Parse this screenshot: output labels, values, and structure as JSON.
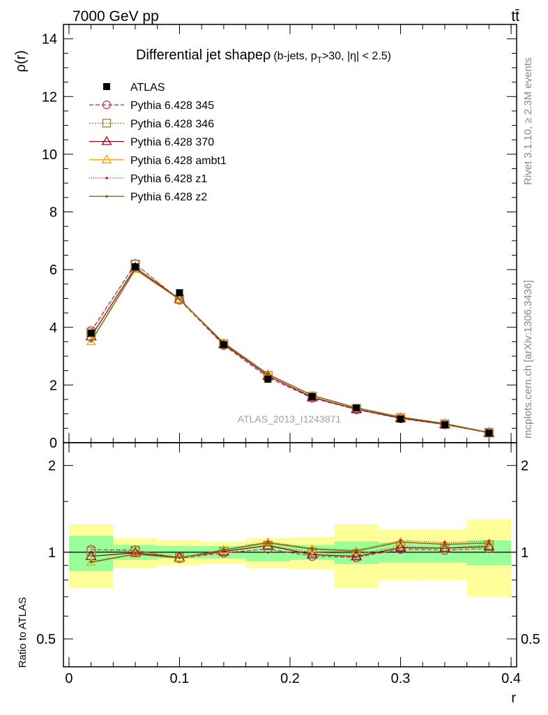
{
  "header": {
    "left": "7000 GeV pp",
    "right": "tt̄",
    "side_top": "Rivet 3.1.10, ≥ 2.3M events",
    "side_bottom": "mcplots.cern.ch [arXiv:1306.3436]"
  },
  "colors": {
    "ATLAS": "#000000",
    "Pythia 6.428 345": "#c0404f",
    "Pythia 6.428 346": "#a08040",
    "Pythia 6.428 370": "#8b0a1a",
    "Pythia 6.428 ambt1": "#f5a000",
    "Pythia 6.428 z1": "#cc1010",
    "Pythia 6.428 z2": "#707010",
    "band_inner": "#99ff99",
    "band_outer": "#ffff99"
  },
  "chart_data": {
    "type": "line",
    "title_main": "Differential jet shapeρ",
    "title_sub": "(b-jets, p",
    "title_sub_sub": "T",
    "title_sub_rest": ">30, |η| < 2.5)",
    "watermark": "ATLAS_2013_I1243871",
    "xlabel": "r",
    "ylabel_top": "ρ(r)",
    "ylabel_bottom": "Ratio to ATLAS",
    "xlim": [
      -0.005,
      0.405
    ],
    "ylim_top": [
      0,
      14.5
    ],
    "ylim_bottom_log": [
      0.4,
      2.4
    ],
    "x_ticks": [
      "0",
      "0.1",
      "0.2",
      "0.3",
      "0.4"
    ],
    "y_ticks_top": [
      "0",
      "2",
      "4",
      "6",
      "8",
      "10",
      "12",
      "14"
    ],
    "y_ticks_bottom": [
      "0.5",
      "1",
      "2"
    ],
    "x": [
      0.02,
      0.06,
      0.1,
      0.14,
      0.18,
      0.22,
      0.26,
      0.3,
      0.34,
      0.38
    ],
    "bin_edges": [
      0.0,
      0.04,
      0.08,
      0.12,
      0.16,
      0.2,
      0.24,
      0.28,
      0.32,
      0.36,
      0.4
    ],
    "data": {
      "name": "ATLAS",
      "values": [
        3.8,
        6.1,
        5.2,
        3.4,
        2.2,
        1.6,
        1.2,
        0.82,
        0.62,
        0.33
      ],
      "band_inner": [
        0.14,
        0.06,
        0.05,
        0.05,
        0.07,
        0.06,
        0.09,
        0.08,
        0.08,
        0.1
      ],
      "band_outer": [
        0.25,
        0.12,
        0.1,
        0.09,
        0.12,
        0.13,
        0.25,
        0.2,
        0.2,
        0.3
      ]
    },
    "series": [
      {
        "name": "Pythia 6.428 345",
        "marker": "circle",
        "dash": "6,3",
        "values": [
          3.88,
          6.2,
          4.95,
          3.38,
          2.26,
          1.55,
          1.15,
          0.84,
          0.63,
          0.34
        ]
      },
      {
        "name": "Pythia 6.428 346",
        "marker": "square",
        "dash": "2,2",
        "values": [
          3.82,
          6.18,
          4.98,
          3.42,
          2.32,
          1.6,
          1.18,
          0.86,
          0.64,
          0.35
        ]
      },
      {
        "name": "Pythia 6.428 370",
        "marker": "triangle",
        "dash": "",
        "values": [
          3.68,
          6.07,
          4.98,
          3.42,
          2.32,
          1.57,
          1.16,
          0.85,
          0.64,
          0.345
        ]
      },
      {
        "name": "Pythia 6.428 ambt1",
        "marker": "triangle",
        "dash": "",
        "values": [
          3.5,
          6.0,
          4.96,
          3.46,
          2.38,
          1.64,
          1.21,
          0.89,
          0.66,
          0.355
        ]
      },
      {
        "name": "Pythia 6.428 z1",
        "marker": "dot",
        "dash": "1,2",
        "values": [
          3.52,
          6.02,
          4.98,
          3.47,
          2.39,
          1.65,
          1.22,
          0.9,
          0.67,
          0.36
        ]
      },
      {
        "name": "Pythia 6.428 z2",
        "marker": "dot",
        "dash": "",
        "values": [
          3.51,
          6.01,
          4.97,
          3.46,
          2.37,
          1.64,
          1.21,
          0.89,
          0.66,
          0.355
        ]
      }
    ]
  }
}
